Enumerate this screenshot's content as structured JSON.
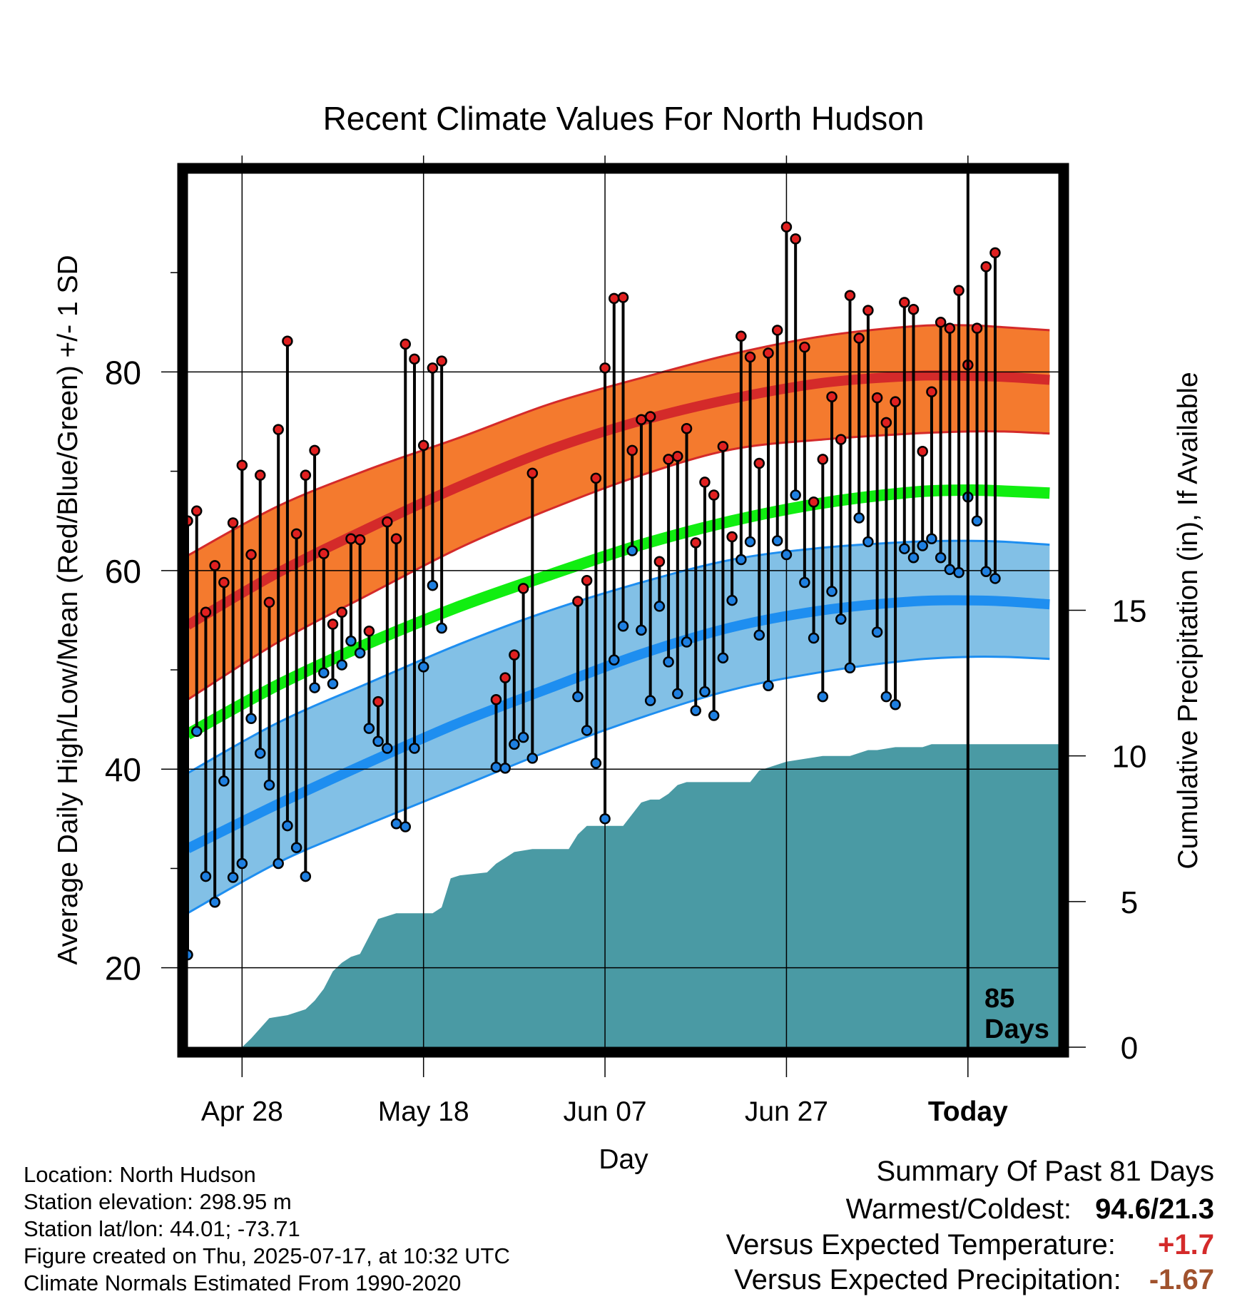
{
  "chart_data": {
    "type": "line",
    "title": "Recent Climate Values For North Hudson",
    "xlabel": "Day",
    "ylabel": "Average Daily High/Low/Mean (Red/Blue/Green) +/- 1 SD",
    "y2label": "Cumulative Precipitation (in), If Available",
    "x_range_days": [
      -86,
      10
    ],
    "ylim": [
      12,
      100
    ],
    "y2lim": [
      0,
      30
    ],
    "x_ticks": [
      {
        "day": -80,
        "label": "Apr 28"
      },
      {
        "day": -60,
        "label": "May 18"
      },
      {
        "day": -40,
        "label": "Jun 07"
      },
      {
        "day": -20,
        "label": "Jun 27"
      },
      {
        "day": 0,
        "label": "Today"
      }
    ],
    "y_ticks": [
      20,
      40,
      60,
      80
    ],
    "y2_ticks": [
      0,
      5,
      10,
      15
    ],
    "grid": true,
    "today_marker": {
      "day": 0,
      "label_line1": "85",
      "label_line2": "Days"
    },
    "colors": {
      "high_band": "#f47a2e",
      "high_mean": "#d42a2a",
      "low_band": "#82c0e6",
      "low_mean": "#1e8ef0",
      "mean_normal": "#11ee11",
      "precip": "#4a9aa4",
      "high_point": "#e02020",
      "low_point": "#1e7fe0"
    },
    "normals": {
      "days": [
        -86,
        -76,
        -66,
        -56,
        -46,
        -36,
        -26,
        -16,
        -6,
        0,
        4,
        9
      ],
      "high_mean": [
        54.5,
        59.8,
        64.3,
        68.5,
        72.2,
        75.1,
        77.3,
        78.9,
        79.6,
        79.6,
        79.5,
        79.2
      ],
      "high_upper": [
        61.5,
        66.5,
        70.2,
        73.4,
        76.8,
        79.4,
        81.8,
        83.6,
        84.6,
        84.7,
        84.5,
        84.2
      ],
      "high_lower": [
        47.0,
        52.8,
        57.6,
        62.3,
        66.2,
        69.6,
        72.2,
        73.2,
        73.8,
        74.0,
        74.0,
        73.8
      ],
      "mean_normal": [
        43.5,
        48.5,
        52.7,
        56.4,
        59.6,
        62.6,
        65.0,
        66.8,
        67.9,
        68.1,
        68.0,
        67.8
      ],
      "low_mean": [
        32.0,
        36.5,
        40.7,
        44.7,
        48.2,
        51.6,
        54.3,
        56.0,
        56.9,
        57.0,
        56.9,
        56.6
      ],
      "low_upper": [
        39.6,
        44.7,
        48.7,
        52.6,
        56.0,
        58.8,
        61.1,
        62.3,
        62.9,
        63.0,
        62.9,
        62.6
      ],
      "low_lower": [
        25.5,
        30.6,
        34.5,
        38.2,
        41.9,
        45.2,
        48.0,
        49.8,
        51.0,
        51.3,
        51.3,
        51.1
      ]
    },
    "observations": [
      {
        "day": -86,
        "high": 65.0,
        "low": 21.3
      },
      {
        "day": -85,
        "high": 66.0,
        "low": 43.8
      },
      {
        "day": -84,
        "high": 55.8,
        "low": 29.2
      },
      {
        "day": -83,
        "high": 60.5,
        "low": 26.6
      },
      {
        "day": -82,
        "high": 58.8,
        "low": 38.8
      },
      {
        "day": -81,
        "high": 64.8,
        "low": 29.1
      },
      {
        "day": -80,
        "high": 70.6,
        "low": 30.5
      },
      {
        "day": -79,
        "high": 61.6,
        "low": 45.1
      },
      {
        "day": -78,
        "high": 69.6,
        "low": 41.6
      },
      {
        "day": -77,
        "high": 56.8,
        "low": 38.4
      },
      {
        "day": -76,
        "high": 74.2,
        "low": 30.5
      },
      {
        "day": -75,
        "high": 83.1,
        "low": 34.3
      },
      {
        "day": -74,
        "high": 63.7,
        "low": 32.1
      },
      {
        "day": -73,
        "high": 69.6,
        "low": 29.2
      },
      {
        "day": -72,
        "high": 72.1,
        "low": 48.2
      },
      {
        "day": -71,
        "high": 61.7,
        "low": 49.7
      },
      {
        "day": -70,
        "high": 54.6,
        "low": 48.6
      },
      {
        "day": -69,
        "high": 55.8,
        "low": 50.5
      },
      {
        "day": -68,
        "high": 63.2,
        "low": 52.9
      },
      {
        "day": -67,
        "high": 63.1,
        "low": 51.7
      },
      {
        "day": -66,
        "high": 53.9,
        "low": 44.1
      },
      {
        "day": -65,
        "high": 46.8,
        "low": 42.8
      },
      {
        "day": -64,
        "high": 64.9,
        "low": 42.1
      },
      {
        "day": -63,
        "high": 63.2,
        "low": 34.5
      },
      {
        "day": -62,
        "high": 82.8,
        "low": 34.2
      },
      {
        "day": -61,
        "high": 81.3,
        "low": 42.1
      },
      {
        "day": -60,
        "high": 72.6,
        "low": 50.3
      },
      {
        "day": -59,
        "high": 80.4,
        "low": 58.5
      },
      {
        "day": -58,
        "high": 81.1,
        "low": 54.2
      },
      {
        "day": -52,
        "high": 47.0,
        "low": 40.2
      },
      {
        "day": -51,
        "high": 49.2,
        "low": 40.1
      },
      {
        "day": -50,
        "high": 51.5,
        "low": 42.5
      },
      {
        "day": -49,
        "high": 58.2,
        "low": 43.2
      },
      {
        "day": -48,
        "high": 69.8,
        "low": 41.1
      },
      {
        "day": -43,
        "high": 56.9,
        "low": 47.3
      },
      {
        "day": -42,
        "high": 59.0,
        "low": 43.9
      },
      {
        "day": -41,
        "high": 69.3,
        "low": 40.6
      },
      {
        "day": -40,
        "high": 80.4,
        "low": 35.0
      },
      {
        "day": -39,
        "high": 87.4,
        "low": 51.0
      },
      {
        "day": -38,
        "high": 87.5,
        "low": 54.4
      },
      {
        "day": -37,
        "high": 72.1,
        "low": 62.0
      },
      {
        "day": -36,
        "high": 75.2,
        "low": 54.0
      },
      {
        "day": -35,
        "high": 75.5,
        "low": 46.9
      },
      {
        "day": -34,
        "high": 60.9,
        "low": 56.4
      },
      {
        "day": -33,
        "high": 71.2,
        "low": 50.8
      },
      {
        "day": -32,
        "high": 71.5,
        "low": 47.6
      },
      {
        "day": -31,
        "high": 74.3,
        "low": 52.8
      },
      {
        "day": -30,
        "high": 62.8,
        "low": 45.9
      },
      {
        "day": -29,
        "high": 68.9,
        "low": 47.8
      },
      {
        "day": -28,
        "high": 67.6,
        "low": 45.4
      },
      {
        "day": -27,
        "high": 72.5,
        "low": 51.2
      },
      {
        "day": -26,
        "high": 63.4,
        "low": 57.0
      },
      {
        "day": -25,
        "high": 83.6,
        "low": 61.1
      },
      {
        "day": -24,
        "high": 81.5,
        "low": 62.9
      },
      {
        "day": -23,
        "high": 70.8,
        "low": 53.5
      },
      {
        "day": -22,
        "high": 81.9,
        "low": 48.4
      },
      {
        "day": -21,
        "high": 84.2,
        "low": 63.0
      },
      {
        "day": -20,
        "high": 94.6,
        "low": 61.6
      },
      {
        "day": -19,
        "high": 93.4,
        "low": 67.6
      },
      {
        "day": -18,
        "high": 82.5,
        "low": 58.8
      },
      {
        "day": -17,
        "high": 66.9,
        "low": 53.2
      },
      {
        "day": -16,
        "high": 71.2,
        "low": 47.3
      },
      {
        "day": -15,
        "high": 77.5,
        "low": 57.9
      },
      {
        "day": -14,
        "high": 73.2,
        "low": 55.1
      },
      {
        "day": -13,
        "high": 87.7,
        "low": 50.2
      },
      {
        "day": -12,
        "high": 83.4,
        "low": 65.3
      },
      {
        "day": -11,
        "high": 86.2,
        "low": 62.9
      },
      {
        "day": -10,
        "high": 77.4,
        "low": 53.8
      },
      {
        "day": -9,
        "high": 74.9,
        "low": 47.3
      },
      {
        "day": -8,
        "high": 77.0,
        "low": 46.5
      },
      {
        "day": -7,
        "high": 87.0,
        "low": 62.2
      },
      {
        "day": -6,
        "high": 86.3,
        "low": 61.3
      },
      {
        "day": -5,
        "high": 72.0,
        "low": 62.5
      },
      {
        "day": -4,
        "high": 78.0,
        "low": 63.2
      },
      {
        "day": -3,
        "high": 85.0,
        "low": 61.3
      },
      {
        "day": -2,
        "high": 84.4,
        "low": 60.1
      },
      {
        "day": -1,
        "high": 88.2,
        "low": 59.8
      },
      {
        "day": 0,
        "high": 80.7,
        "low": 67.4
      },
      {
        "day": 1,
        "high": 84.4,
        "low": 65.0
      },
      {
        "day": 2,
        "high": 90.6,
        "low": 59.9
      },
      {
        "day": 3,
        "high": 92.0,
        "low": 59.2
      }
    ],
    "precip_cumulative": {
      "days": [
        -86,
        -80,
        -79,
        -77,
        -75,
        -73,
        -72,
        -71,
        -70,
        -69,
        -68,
        -67,
        -66,
        -65,
        -64,
        -63,
        -61,
        -60,
        -59,
        -58,
        -57,
        -56,
        -53,
        -52,
        -51,
        -50,
        -48,
        -47,
        -45,
        -44,
        -43,
        -42,
        -40,
        -39,
        -38,
        -36,
        -35,
        -34,
        -33,
        -32,
        -31,
        -30,
        -28,
        -26,
        -25,
        -24,
        -23,
        -22,
        -21,
        -20,
        -18,
        -16,
        -15,
        -13,
        -12,
        -11,
        -10,
        -8,
        -5,
        -4,
        -3,
        10
      ],
      "values": [
        0,
        0,
        0.3,
        1.0,
        1.1,
        1.3,
        1.6,
        2.0,
        2.6,
        2.9,
        3.1,
        3.2,
        3.8,
        4.4,
        4.5,
        4.6,
        4.6,
        4.6,
        4.6,
        4.8,
        5.8,
        5.9,
        6.0,
        6.3,
        6.5,
        6.7,
        6.8,
        6.8,
        6.8,
        6.8,
        7.3,
        7.6,
        7.6,
        7.6,
        7.6,
        8.4,
        8.5,
        8.5,
        8.7,
        9.0,
        9.1,
        9.1,
        9.1,
        9.1,
        9.1,
        9.1,
        9.5,
        9.6,
        9.7,
        9.8,
        9.9,
        10.0,
        10.0,
        10.0,
        10.1,
        10.2,
        10.2,
        10.3,
        10.3,
        10.4,
        10.4,
        10.4
      ]
    }
  },
  "footer": {
    "location": "Location: North Hudson",
    "elevation": "Station elevation: 298.95 m",
    "latlon": "Station lat/lon: 44.01; -73.71",
    "created": "Figure created on Thu, 2025-07-17, at 10:32 UTC",
    "normals": "Climate Normals Estimated From 1990-2020"
  },
  "summary": {
    "title": "Summary Of Past 81 Days",
    "warmest_coldest_label": "Warmest/Coldest:",
    "warmest_coldest_value": "94.6/21.3",
    "temp_label": "Versus Expected Temperature:",
    "temp_value": "+1.7",
    "temp_color": "#d42a2a",
    "precip_label": "Versus Expected Precipitation:",
    "precip_value": "-1.67",
    "precip_color": "#a0522d"
  }
}
